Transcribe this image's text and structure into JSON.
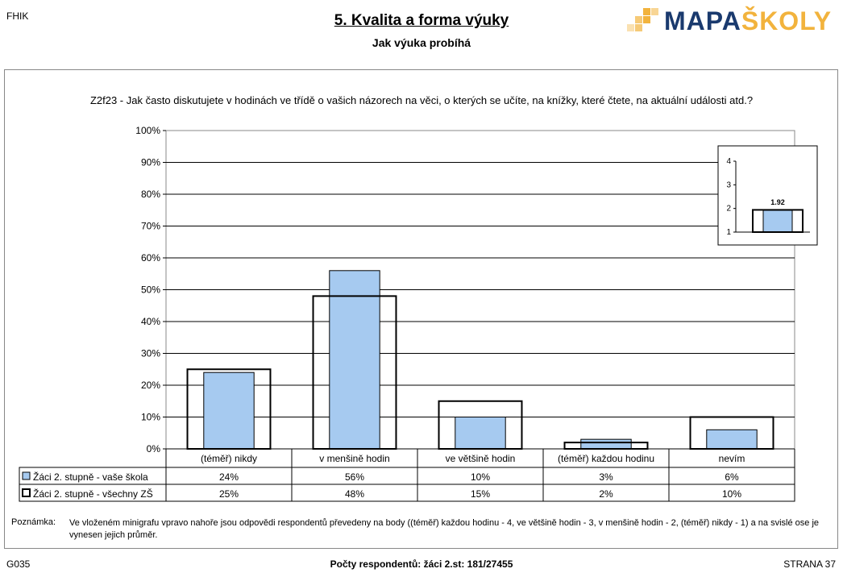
{
  "header": {
    "code": "FHIK",
    "title": "5. Kvalita a forma výuky",
    "subtitle": "Jak výuka probíhá",
    "logo": {
      "part1": "MAPA",
      "part2": "ŠKOLY"
    }
  },
  "question": "Z2f23 - Jak často diskutujete v hodinách ve třídě o vašich názorech na věci, o kterých se učíte, na knížky, které čtete, na aktuální události atd.?",
  "chart_data": [
    {
      "type": "bar",
      "categories": [
        "(téměř) nikdy",
        "v menšině hodin",
        "ve většině hodin",
        "(téměř) každou hodinu",
        "nevím"
      ],
      "series": [
        {
          "name": "Žáci 2. stupně - vaše škola",
          "values": [
            24,
            56,
            10,
            3,
            6
          ],
          "labels": [
            "24%",
            "56%",
            "10%",
            "3%",
            "6%"
          ],
          "style": "filled",
          "color": "#a6caf0"
        },
        {
          "name": "Žáci 2. stupně - všechny ZŠ",
          "values": [
            25,
            48,
            15,
            2,
            10
          ],
          "labels": [
            "25%",
            "48%",
            "15%",
            "2%",
            "10%"
          ],
          "style": "outline",
          "color": "#000000"
        }
      ],
      "ylim": [
        0,
        100
      ],
      "yticks": [
        "0%",
        "10%",
        "20%",
        "30%",
        "40%",
        "50%",
        "60%",
        "70%",
        "80%",
        "90%",
        "100%"
      ],
      "grid": true
    },
    {
      "type": "bar",
      "role": "inset",
      "series": [
        {
          "name": "vaše škola",
          "values": [
            1.92
          ],
          "style": "filled",
          "color": "#a6caf0"
        },
        {
          "name": "všechny ZŠ",
          "values": [
            1.94
          ],
          "style": "outline",
          "color": "#000000"
        }
      ],
      "data_label": "1.92",
      "ylim": [
        1,
        4
      ],
      "yticks": [
        "1",
        "2",
        "3",
        "4"
      ]
    }
  ],
  "note": {
    "label": "Poznámka:",
    "text": "Ve vloženém minigrafu vpravo nahoře jsou odpovědi respondentů převedeny na body ((téměř) každou hodinu - 4, ve většině hodin - 3, v menšině hodin - 2, (téměř) nikdy - 1) a na svislé ose je vynesen jejich průměr."
  },
  "footer": {
    "left": "G035",
    "center": "Počty respondentů:   žáci 2.st: 181/27455",
    "right": "STRANA 37"
  }
}
